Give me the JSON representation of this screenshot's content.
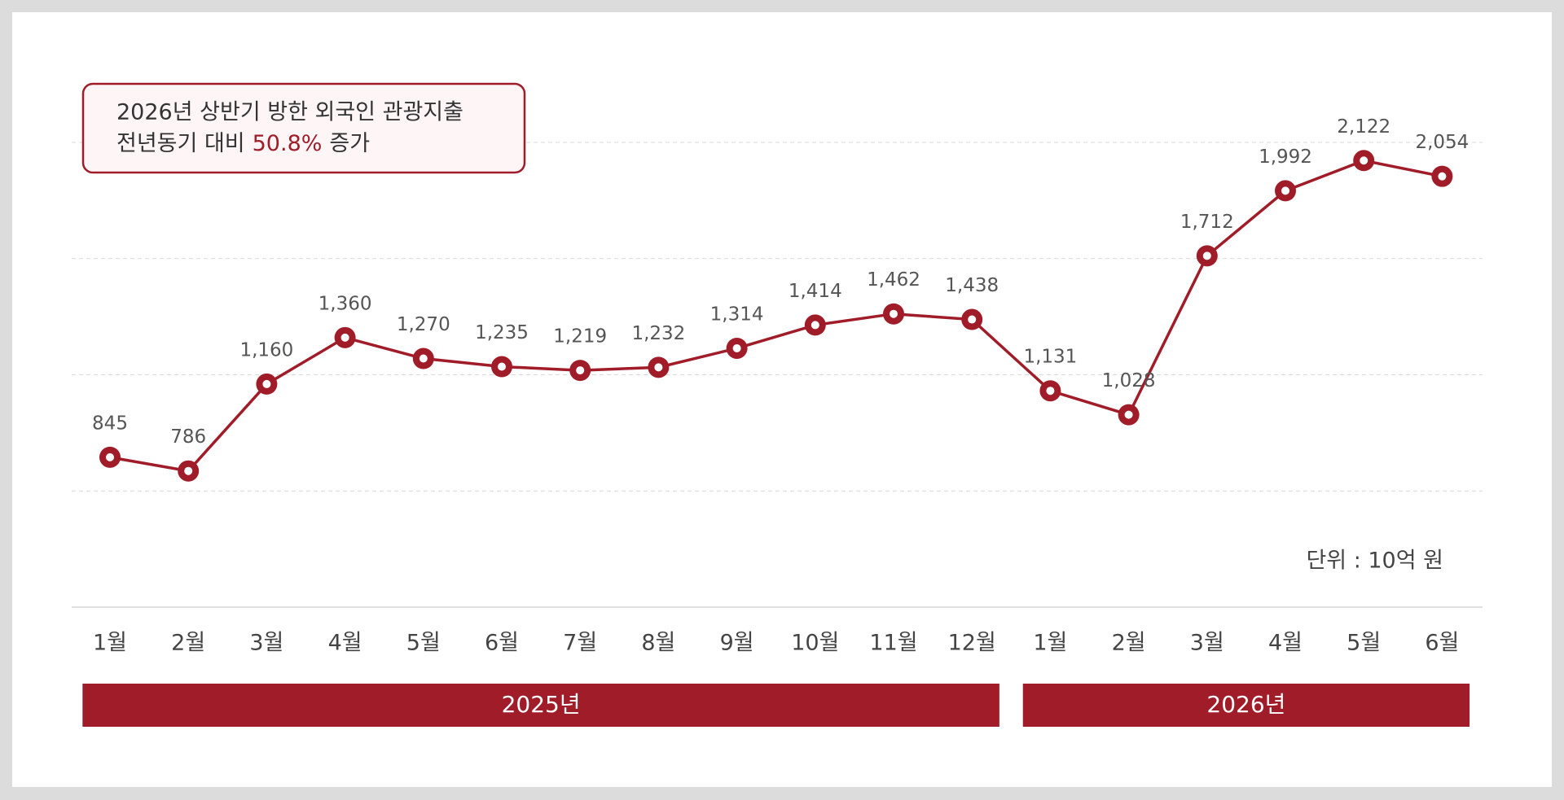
{
  "chart_data": {
    "type": "line",
    "annotation": {
      "line1": "2026년 상반기 방한 외국인 관광지출",
      "line2_prefix": "전년동기 대비",
      "highlight": "50.8%",
      "line2_suffix": "증가"
    },
    "unit_note": "단위 : 10억 원",
    "category_groups": [
      {
        "label": "2025년",
        "categories": [
          "1월",
          "2월",
          "3월",
          "4월",
          "5월",
          "6월",
          "7월",
          "8월",
          "9월",
          "10월",
          "11월",
          "12월"
        ]
      },
      {
        "label": "2026년",
        "categories": [
          "1월",
          "2월",
          "3월",
          "4월",
          "5월",
          "6월"
        ]
      }
    ],
    "values": [
      845,
      786,
      1160,
      1360,
      1270,
      1235,
      1219,
      1232,
      1314,
      1414,
      1462,
      1438,
      1131,
      1028,
      1712,
      1992,
      2122,
      2054
    ],
    "value_labels": [
      "845",
      "786",
      "1,160",
      "1,360",
      "1,270",
      "1,235",
      "1,219",
      "1,232",
      "1,314",
      "1,414",
      "1,462",
      "1,438",
      "1,131",
      "1,028",
      "1,712",
      "1,992",
      "2,122",
      "2,054"
    ],
    "color": "#a01c28",
    "ylim": [
      200,
      2200
    ],
    "yticks": [
      200,
      700,
      1200,
      1700,
      2200
    ],
    "grid": true
  }
}
